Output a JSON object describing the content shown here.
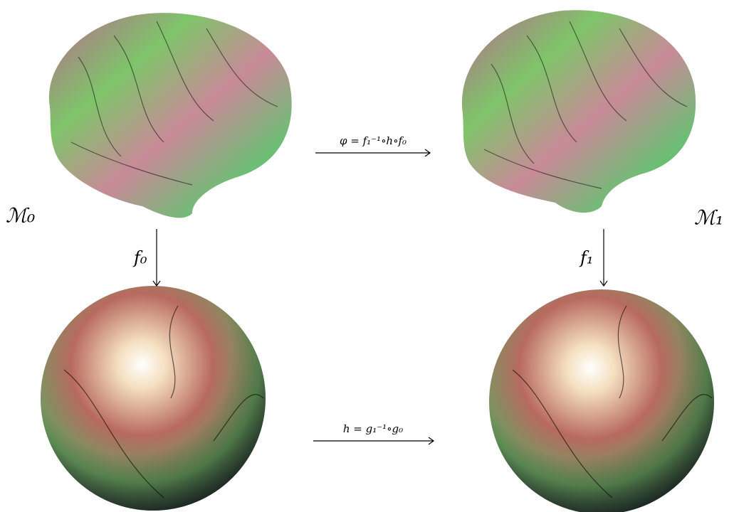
{
  "labels": {
    "source_manifold": "ℳ₀",
    "target_manifold": "ℳ₁",
    "source_map": "f₀",
    "target_map": "f₁",
    "surface_map": "φ = f₁⁻¹∘h∘f₀",
    "sphere_map": "h = g₁⁻¹∘g₀"
  }
}
